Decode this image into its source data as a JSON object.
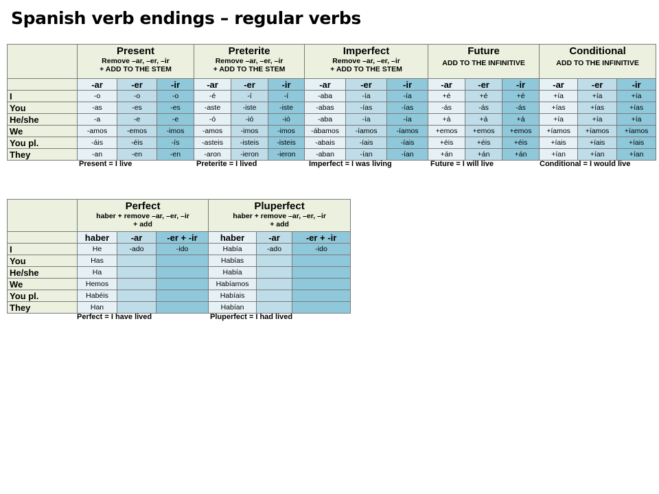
{
  "title": "Spanish verb endings – regular verbs",
  "colors": {
    "header_bg": "#ebf1de",
    "col1_bg": "#e6f1f6",
    "col2_bg": "#bfdde8",
    "col3_bg": "#8fc8da",
    "border": "#7a7a7a"
  },
  "pronouns": [
    "I",
    "You",
    "He/she",
    "We",
    "You pl.",
    "They"
  ],
  "table1": {
    "groups": [
      {
        "name": "Present",
        "note": "Remove –ar, –er, –ir",
        "note2": "+ ADD TO THE STEM"
      },
      {
        "name": "Preterite",
        "note": "Remove –ar, –er, –ir",
        "note2": "+ ADD TO THE STEM"
      },
      {
        "name": "Imperfect",
        "note": "Remove –ar, –er, –ir",
        "note2": "+ ADD TO THE STEM"
      },
      {
        "name": "Future",
        "note": "ADD TO THE INFINITIVE",
        "note2": ""
      },
      {
        "name": "Conditional",
        "note": "ADD TO THE INFINITIVE",
        "note2": ""
      }
    ],
    "endings": [
      "-ar",
      "-er",
      "-ir"
    ],
    "rows": [
      [
        "-o",
        "-o",
        "-o",
        "-é",
        "-í",
        "-í",
        "-aba",
        "-ía",
        "-ía",
        "+é",
        "+é",
        "+é",
        "+ía",
        "+ía",
        "+ía"
      ],
      [
        "-as",
        "-es",
        "-es",
        "-aste",
        "-iste",
        "-iste",
        "-abas",
        "-ías",
        "-ías",
        "-ás",
        "-ás",
        "-ás",
        "+ías",
        "+ías",
        "+ías"
      ],
      [
        "-a",
        "-e",
        "-e",
        "-ó",
        "-ió",
        "-ió",
        "-aba",
        "-ía",
        "-ía",
        "+á",
        "+á",
        "+á",
        "+ía",
        "+ía",
        "+ía"
      ],
      [
        "-amos",
        "-emos",
        "-imos",
        "-amos",
        "-imos",
        "-imos",
        "-ábamos",
        "-íamos",
        "-íamos",
        "+emos",
        "+emos",
        "+emos",
        "+íamos",
        "+íamos",
        "+íamos"
      ],
      [
        "-áis",
        "-éis",
        "-ís",
        "-asteis",
        "-isteis",
        "-isteis",
        "-abais",
        "-íais",
        "-íais",
        "+éis",
        "+éis",
        "+éis",
        "+íais",
        "+íais",
        "+íais"
      ],
      [
        "-an",
        "-en",
        "-en",
        "-aron",
        "-ieron",
        "-ieron",
        "-aban",
        "-ían",
        "-ían",
        "+án",
        "+án",
        "+án",
        "+ían",
        "+ían",
        "+ían"
      ]
    ],
    "captions": [
      "Present = I live",
      "Preterite = I lived",
      "Imperfect = I was living",
      "Future = I will live",
      "Conditional = I would live"
    ]
  },
  "table2": {
    "groups": [
      {
        "name": "Perfect",
        "note": "haber + remove –ar, –er, –ir",
        "note2": "+ add"
      },
      {
        "name": "Pluperfect",
        "note": "haber + remove –ar, –er, –ir",
        "note2": "+ add"
      }
    ],
    "subheads": [
      "haber",
      "-ar",
      "-er + -ir",
      "haber",
      "-ar",
      "-er + -ir"
    ],
    "rows": [
      [
        "He",
        "-ado",
        "-ido",
        "Había",
        "-ado",
        "-ido"
      ],
      [
        "Has",
        "",
        "",
        "Habías",
        "",
        ""
      ],
      [
        "Ha",
        "",
        "",
        "Había",
        "",
        ""
      ],
      [
        "Hemos",
        "",
        "",
        "Habíamos",
        "",
        ""
      ],
      [
        "Habéis",
        "",
        "",
        "Habíais",
        "",
        ""
      ],
      [
        "Han",
        "",
        "",
        "Habían",
        "",
        ""
      ]
    ],
    "captions": [
      "Perfect = I have lived",
      "Pluperfect = I had lived"
    ]
  }
}
